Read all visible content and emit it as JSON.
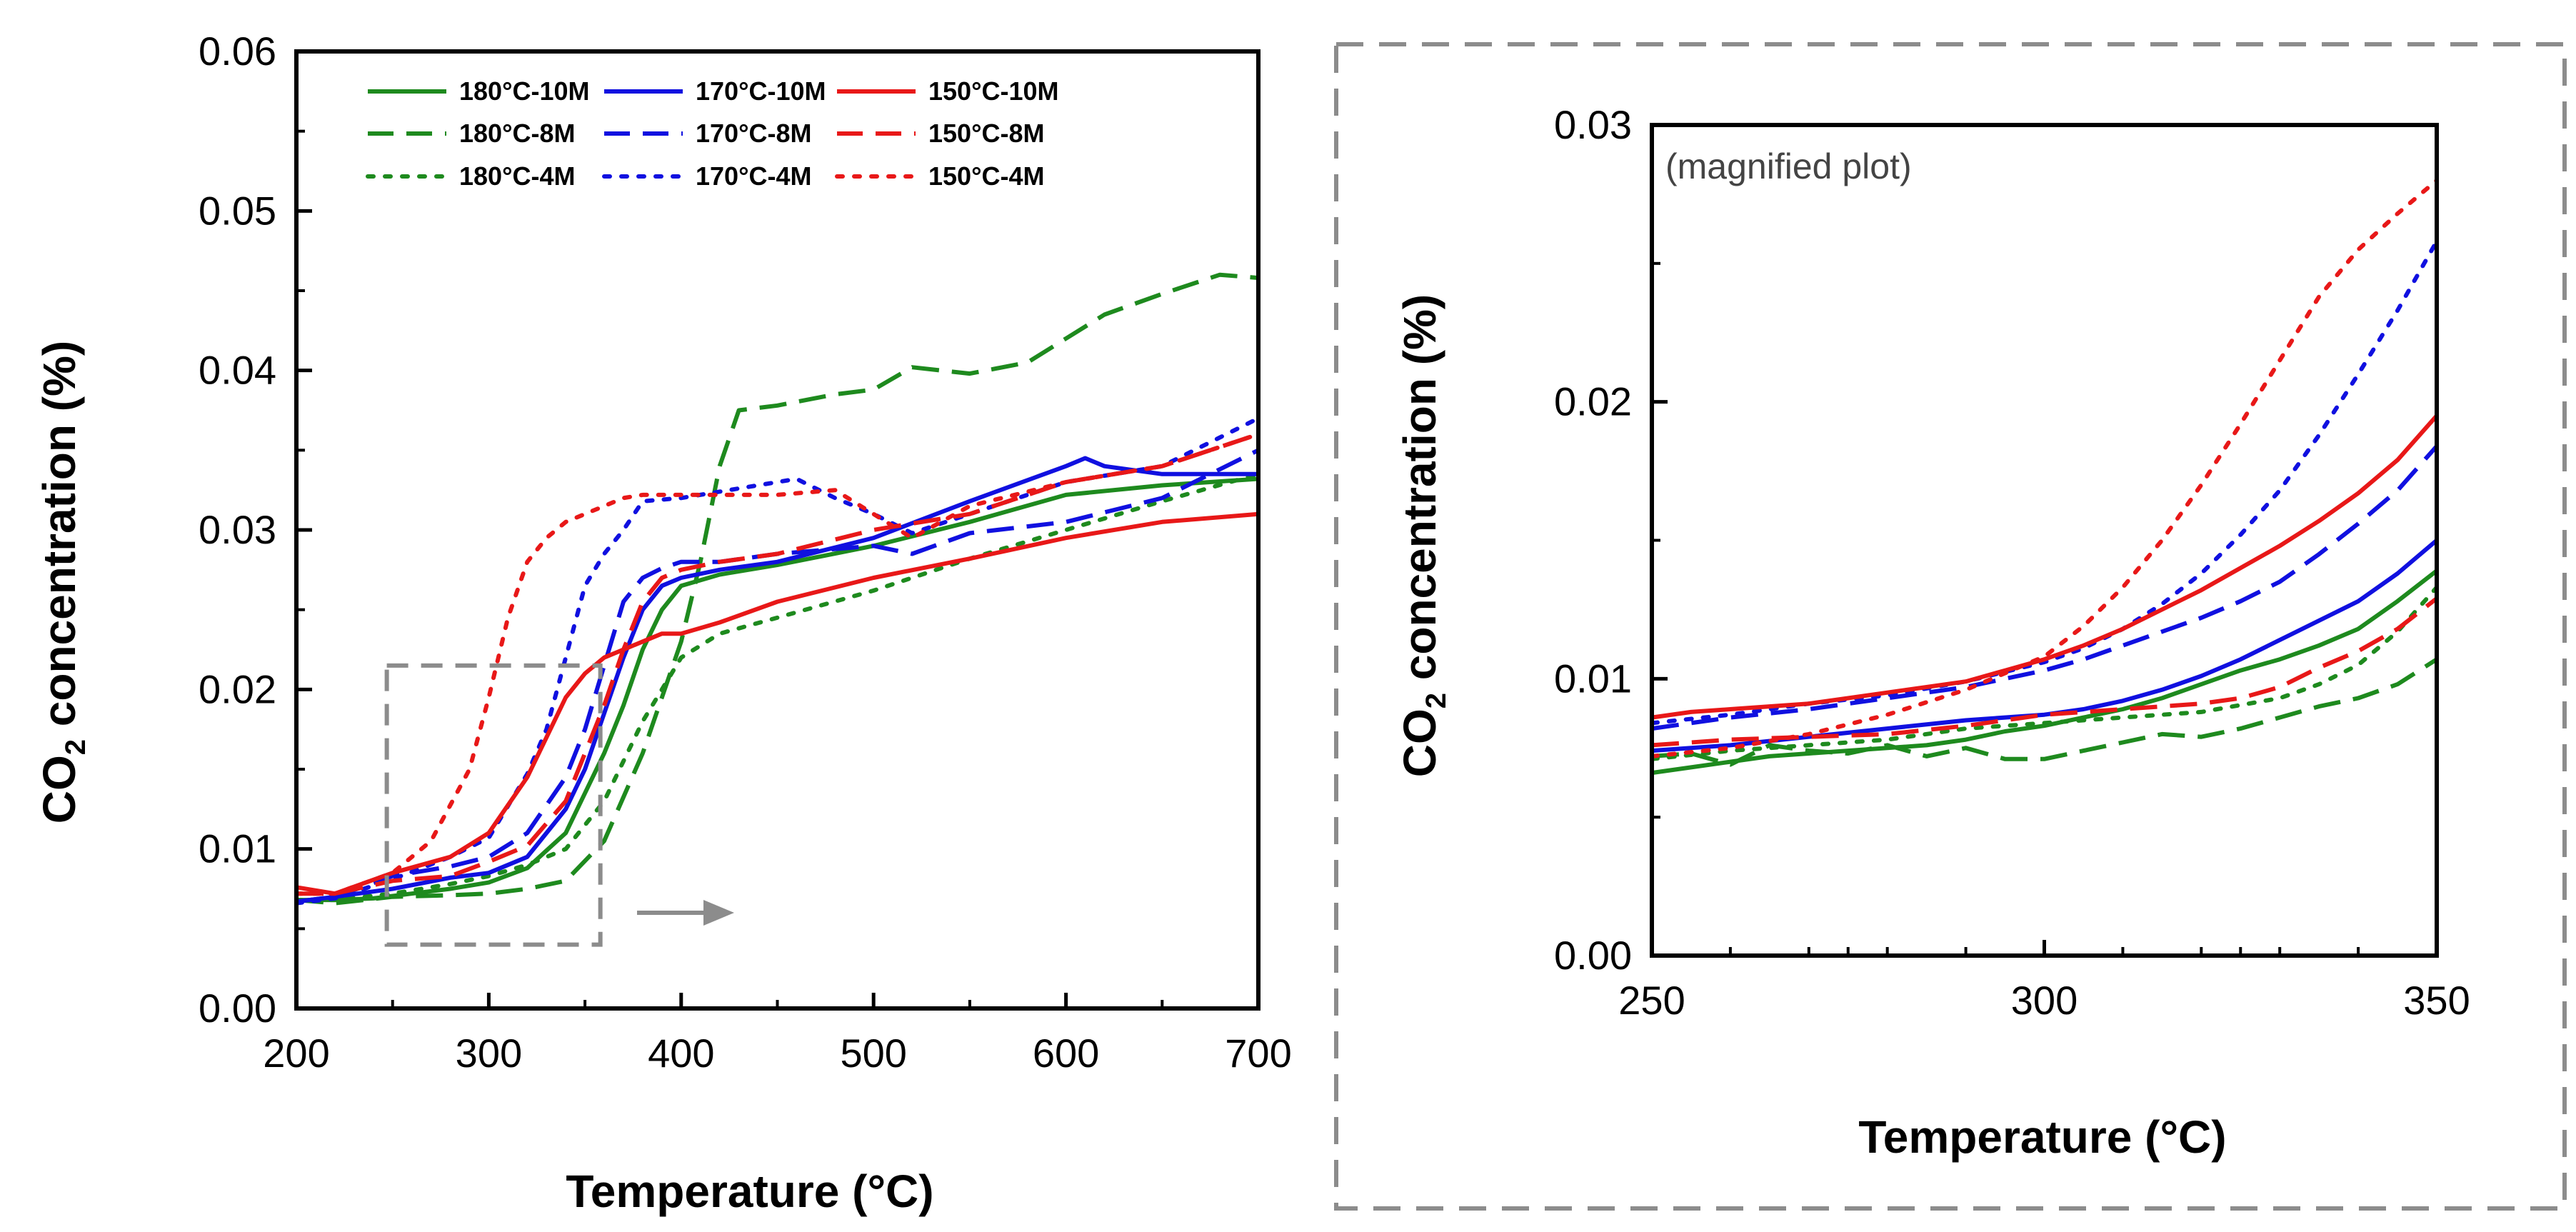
{
  "colors": {
    "green": "#1e8a1e",
    "blue": "#1010e0",
    "red": "#e81818",
    "gray_box": "#8c8c8c"
  },
  "left_panel": {
    "annotation_arrow": "right-arrow-icon"
  },
  "right_panel": {
    "note": "(magnified plot)"
  },
  "chart_data": [
    {
      "type": "line",
      "title": "",
      "xlabel": "Temperature (°C)",
      "ylabel_main": "CO",
      "ylabel_sub": "2",
      "ylabel_rest": " concentration (%)",
      "xlim": [
        200,
        700
      ],
      "ylim": [
        0,
        0.06
      ],
      "xticks": [
        200,
        300,
        400,
        500,
        600,
        700
      ],
      "xtick_labels": [
        "200",
        "300",
        "400",
        "500",
        "600",
        "700"
      ],
      "yticks": [
        0,
        0.01,
        0.02,
        0.03,
        0.04,
        0.05,
        0.06
      ],
      "ytick_labels": [
        "0.00",
        "0.01",
        "0.02",
        "0.03",
        "0.04",
        "0.05",
        "0.06"
      ],
      "legend_position": "top-left",
      "zoom_box": {
        "x": [
          247,
          358
        ],
        "y": [
          0.004,
          0.0215
        ]
      },
      "series": [
        {
          "name": "180°C-10M",
          "color": "green",
          "dash": "solid",
          "x": [
            200,
            220,
            240,
            260,
            280,
            300,
            320,
            340,
            350,
            360,
            370,
            380,
            390,
            400,
            420,
            450,
            500,
            550,
            600,
            650,
            700
          ],
          "y": [
            0.0068,
            0.0068,
            0.0069,
            0.0072,
            0.0075,
            0.0079,
            0.0088,
            0.011,
            0.0135,
            0.016,
            0.019,
            0.0225,
            0.025,
            0.0265,
            0.0272,
            0.0278,
            0.029,
            0.0305,
            0.0322,
            0.0328,
            0.0332
          ]
        },
        {
          "name": "180°C-8M",
          "color": "green",
          "dash": "dash",
          "x": [
            200,
            220,
            250,
            280,
            300,
            320,
            340,
            360,
            380,
            400,
            410,
            420,
            430,
            450,
            480,
            500,
            520,
            550,
            580,
            600,
            620,
            650,
            680,
            700
          ],
          "y": [
            0.0068,
            0.0066,
            0.007,
            0.0071,
            0.0072,
            0.0075,
            0.008,
            0.0105,
            0.016,
            0.023,
            0.028,
            0.034,
            0.0375,
            0.0378,
            0.0385,
            0.0388,
            0.0402,
            0.0398,
            0.0405,
            0.042,
            0.0435,
            0.0448,
            0.046,
            0.0458
          ]
        },
        {
          "name": "180°C-4M",
          "color": "green",
          "dash": "dot",
          "x": [
            200,
            220,
            250,
            280,
            300,
            320,
            340,
            360,
            380,
            400,
            420,
            450,
            500,
            550,
            600,
            650,
            700
          ],
          "y": [
            0.0068,
            0.0068,
            0.0072,
            0.0078,
            0.0083,
            0.009,
            0.01,
            0.013,
            0.018,
            0.022,
            0.0235,
            0.0245,
            0.0262,
            0.0282,
            0.03,
            0.0318,
            0.0335
          ]
        },
        {
          "name": "170°C-10M",
          "color": "blue",
          "dash": "solid",
          "x": [
            200,
            220,
            250,
            280,
            300,
            320,
            340,
            350,
            360,
            370,
            380,
            390,
            400,
            420,
            450,
            500,
            550,
            600,
            610,
            620,
            650,
            700
          ],
          "y": [
            0.0067,
            0.007,
            0.0075,
            0.0082,
            0.0085,
            0.0095,
            0.0125,
            0.015,
            0.0185,
            0.022,
            0.025,
            0.0265,
            0.027,
            0.0275,
            0.028,
            0.0295,
            0.0318,
            0.034,
            0.0345,
            0.034,
            0.0335,
            0.0335
          ]
        },
        {
          "name": "170°C-8M",
          "color": "blue",
          "dash": "dash",
          "x": [
            200,
            220,
            250,
            280,
            300,
            320,
            340,
            350,
            360,
            370,
            380,
            390,
            400,
            420,
            450,
            500,
            520,
            550,
            600,
            650,
            700
          ],
          "y": [
            0.0067,
            0.007,
            0.0083,
            0.0089,
            0.0095,
            0.011,
            0.0145,
            0.0175,
            0.0215,
            0.0255,
            0.027,
            0.0276,
            0.028,
            0.028,
            0.0285,
            0.029,
            0.0285,
            0.0298,
            0.0305,
            0.032,
            0.035
          ]
        },
        {
          "name": "170°C-4M",
          "color": "blue",
          "dash": "dot",
          "x": [
            200,
            220,
            250,
            280,
            300,
            310,
            320,
            330,
            340,
            350,
            360,
            370,
            380,
            400,
            450,
            460,
            480,
            500,
            520,
            550,
            600,
            650,
            700
          ],
          "y": [
            0.0066,
            0.0069,
            0.0081,
            0.0095,
            0.0107,
            0.0127,
            0.0147,
            0.0175,
            0.022,
            0.0265,
            0.0285,
            0.03,
            0.0318,
            0.032,
            0.033,
            0.0332,
            0.032,
            0.031,
            0.0298,
            0.031,
            0.033,
            0.034,
            0.037
          ]
        },
        {
          "name": "150°C-10M",
          "color": "red",
          "dash": "solid",
          "x": [
            200,
            220,
            250,
            280,
            300,
            320,
            340,
            350,
            360,
            370,
            380,
            390,
            400,
            420,
            450,
            500,
            550,
            600,
            650,
            700
          ],
          "y": [
            0.0076,
            0.0072,
            0.0085,
            0.0095,
            0.011,
            0.0145,
            0.0195,
            0.021,
            0.022,
            0.0225,
            0.023,
            0.0235,
            0.0235,
            0.0242,
            0.0255,
            0.027,
            0.0282,
            0.0295,
            0.0305,
            0.031
          ]
        },
        {
          "name": "150°C-8M",
          "color": "red",
          "dash": "dash",
          "x": [
            200,
            220,
            250,
            280,
            300,
            320,
            340,
            350,
            360,
            370,
            380,
            390,
            400,
            420,
            450,
            500,
            550,
            600,
            650,
            700
          ],
          "y": [
            0.0072,
            0.0072,
            0.008,
            0.0083,
            0.0092,
            0.0102,
            0.013,
            0.016,
            0.019,
            0.0225,
            0.0255,
            0.027,
            0.0275,
            0.028,
            0.0285,
            0.03,
            0.031,
            0.033,
            0.034,
            0.036
          ]
        },
        {
          "name": "150°C-4M",
          "color": "red",
          "dash": "dot",
          "x": [
            200,
            220,
            250,
            270,
            290,
            300,
            310,
            320,
            330,
            340,
            350,
            360,
            370,
            380,
            400,
            450,
            480,
            500,
            520,
            550,
            600,
            650,
            700
          ],
          "y": [
            0.0072,
            0.0072,
            0.0085,
            0.0105,
            0.015,
            0.0195,
            0.0245,
            0.028,
            0.0295,
            0.0305,
            0.031,
            0.0315,
            0.032,
            0.0322,
            0.0322,
            0.0322,
            0.0325,
            0.031,
            0.0295,
            0.0315,
            0.033,
            0.034,
            0.036
          ]
        }
      ]
    },
    {
      "type": "line",
      "title": "",
      "xlabel": "Temperature (°C)",
      "ylabel_main": "CO",
      "ylabel_sub": "2",
      "ylabel_rest": " concentration (%)",
      "xlim": [
        250,
        350
      ],
      "ylim": [
        0,
        0.03
      ],
      "xticks": [
        250,
        300,
        350
      ],
      "xtick_labels": [
        "250",
        "300",
        "350"
      ],
      "yticks": [
        0,
        0.01,
        0.02,
        0.03
      ],
      "ytick_labels": [
        "0.00",
        "0.01",
        "0.02",
        "0.03"
      ],
      "series": [
        {
          "name": "180°C-10M",
          "color": "green",
          "dash": "solid",
          "x": [
            250,
            255,
            260,
            265,
            270,
            275,
            280,
            285,
            290,
            295,
            300,
            305,
            310,
            315,
            320,
            325,
            330,
            335,
            340,
            345,
            350
          ],
          "y": [
            0.0066,
            0.0068,
            0.007,
            0.0072,
            0.0073,
            0.0074,
            0.0075,
            0.0076,
            0.0078,
            0.0081,
            0.0083,
            0.0086,
            0.0089,
            0.0093,
            0.0098,
            0.0103,
            0.0107,
            0.0112,
            0.0118,
            0.0128,
            0.0139
          ]
        },
        {
          "name": "180°C-8M",
          "color": "green",
          "dash": "dash",
          "x": [
            250,
            255,
            260,
            265,
            270,
            275,
            280,
            285,
            290,
            295,
            300,
            305,
            310,
            315,
            320,
            325,
            330,
            335,
            340,
            345,
            350
          ],
          "y": [
            0.0072,
            0.0073,
            0.0069,
            0.0076,
            0.0074,
            0.0073,
            0.0076,
            0.0072,
            0.0075,
            0.0071,
            0.0071,
            0.0074,
            0.0077,
            0.008,
            0.0079,
            0.0082,
            0.0086,
            0.009,
            0.0093,
            0.0098,
            0.0107
          ]
        },
        {
          "name": "180°C-4M",
          "color": "green",
          "dash": "dot",
          "x": [
            250,
            260,
            270,
            280,
            290,
            300,
            310,
            320,
            330,
            335,
            340,
            345,
            350
          ],
          "y": [
            0.0071,
            0.0074,
            0.0076,
            0.0078,
            0.0082,
            0.0084,
            0.0086,
            0.0088,
            0.0093,
            0.0098,
            0.0105,
            0.0117,
            0.0133
          ]
        },
        {
          "name": "170°C-10M",
          "color": "blue",
          "dash": "solid",
          "x": [
            250,
            260,
            270,
            280,
            290,
            300,
            305,
            310,
            315,
            320,
            325,
            330,
            335,
            340,
            345,
            350
          ],
          "y": [
            0.0074,
            0.0076,
            0.0079,
            0.0082,
            0.0085,
            0.0087,
            0.0089,
            0.0092,
            0.0096,
            0.0101,
            0.0107,
            0.0114,
            0.0121,
            0.0128,
            0.0138,
            0.015
          ]
        },
        {
          "name": "170°C-8M",
          "color": "blue",
          "dash": "dash",
          "x": [
            250,
            260,
            270,
            280,
            290,
            300,
            305,
            310,
            315,
            320,
            325,
            330,
            335,
            340,
            345,
            350
          ],
          "y": [
            0.0082,
            0.0086,
            0.0089,
            0.0093,
            0.0097,
            0.0103,
            0.0107,
            0.0112,
            0.0117,
            0.0122,
            0.0128,
            0.0135,
            0.0145,
            0.0156,
            0.0168,
            0.0184
          ]
        },
        {
          "name": "170°C-4M",
          "color": "blue",
          "dash": "dot",
          "x": [
            250,
            260,
            270,
            280,
            290,
            300,
            305,
            310,
            315,
            320,
            325,
            330,
            335,
            340,
            345,
            350
          ],
          "y": [
            0.0084,
            0.0087,
            0.0091,
            0.0094,
            0.0099,
            0.0106,
            0.0111,
            0.0118,
            0.0127,
            0.0138,
            0.0152,
            0.0168,
            0.0188,
            0.021,
            0.0233,
            0.0258
          ]
        },
        {
          "name": "150°C-10M",
          "color": "red",
          "dash": "solid",
          "x": [
            250,
            255,
            260,
            265,
            270,
            275,
            280,
            285,
            290,
            295,
            300,
            305,
            310,
            315,
            320,
            325,
            330,
            335,
            340,
            345,
            350
          ],
          "y": [
            0.0086,
            0.0088,
            0.0089,
            0.009,
            0.0091,
            0.0093,
            0.0095,
            0.0097,
            0.0099,
            0.0103,
            0.0107,
            0.0112,
            0.0118,
            0.0125,
            0.0132,
            0.014,
            0.0148,
            0.0157,
            0.0167,
            0.0179,
            0.0195
          ]
        },
        {
          "name": "150°C-8M",
          "color": "red",
          "dash": "dash",
          "x": [
            250,
            260,
            270,
            280,
            290,
            300,
            310,
            320,
            325,
            330,
            335,
            340,
            345,
            350
          ],
          "y": [
            0.0076,
            0.0078,
            0.0079,
            0.008,
            0.0083,
            0.0087,
            0.0089,
            0.0091,
            0.0093,
            0.0097,
            0.0104,
            0.011,
            0.0118,
            0.0129
          ]
        },
        {
          "name": "150°C-4M",
          "color": "red",
          "dash": "dot",
          "x": [
            250,
            260,
            270,
            280,
            290,
            300,
            305,
            310,
            315,
            320,
            325,
            330,
            335,
            340,
            345,
            350
          ],
          "y": [
            0.0072,
            0.0075,
            0.008,
            0.0087,
            0.0096,
            0.0108,
            0.0119,
            0.0133,
            0.015,
            0.017,
            0.0192,
            0.0215,
            0.0238,
            0.0255,
            0.0268,
            0.028
          ]
        }
      ]
    }
  ]
}
